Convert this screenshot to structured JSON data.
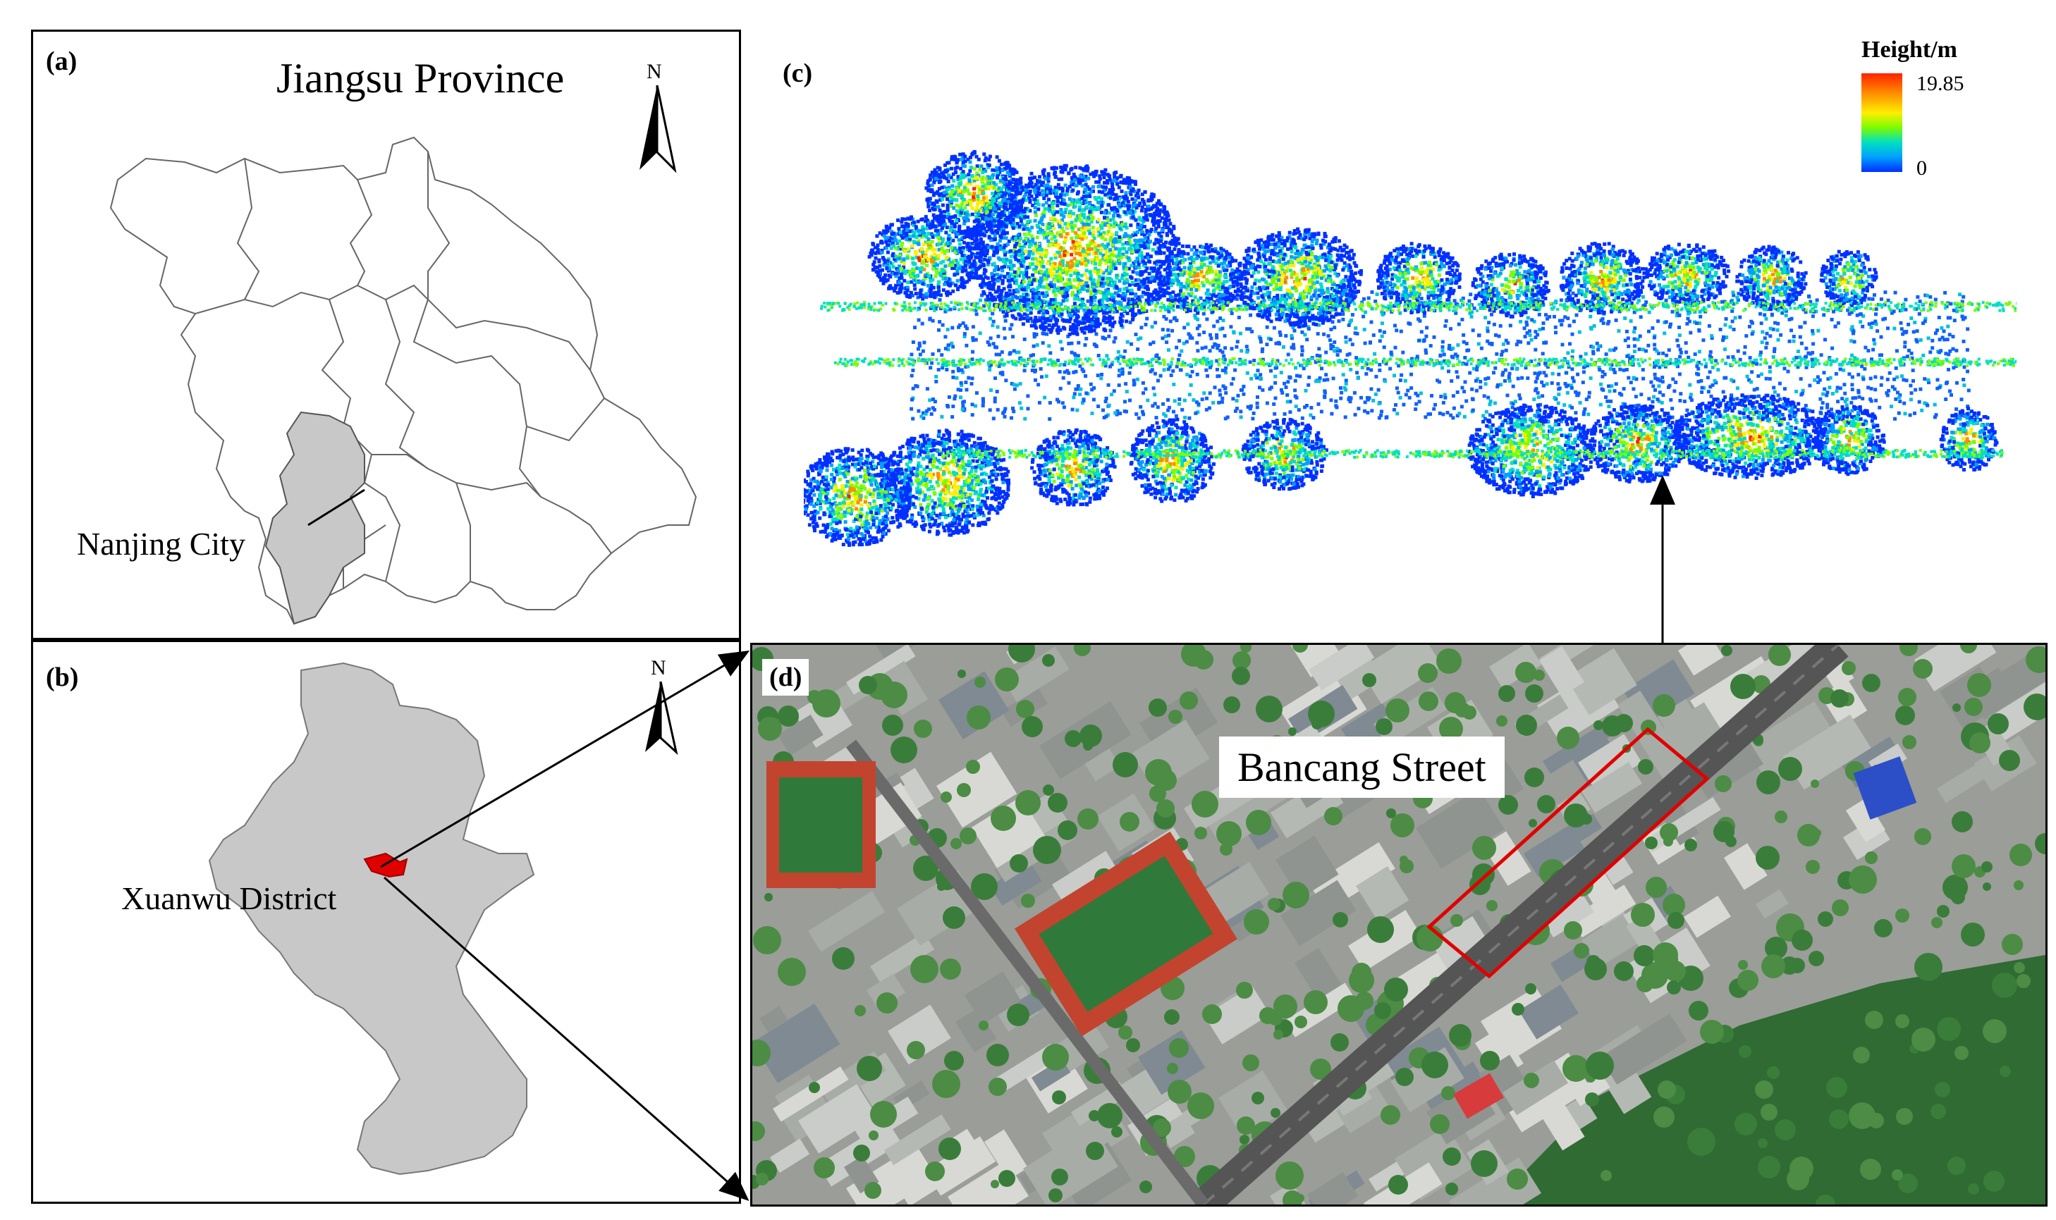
{
  "panel_a": {
    "label": "(a)",
    "title": "Jiangsu Province",
    "north": "N",
    "city_label": "Nanjing City"
  },
  "panel_b": {
    "label": "(b)",
    "north": "N",
    "district_label": "Xuanwu District"
  },
  "panel_c": {
    "label": "(c)",
    "legend": {
      "title": "Height/m",
      "max": "19.85",
      "min": "0",
      "colors": [
        "#ff2200",
        "#ff8c00",
        "#ffee00",
        "#7cfc00",
        "#00e0c0",
        "#00a0ff",
        "#0030ff"
      ]
    }
  },
  "panel_d": {
    "label": "(d)",
    "street_label": "Bancang Street"
  },
  "colors": {
    "highlight_red": "#e00000",
    "nanjing_fill": "#c8c8c8",
    "vegetation": "#3a7d3a",
    "road": "#555555"
  }
}
